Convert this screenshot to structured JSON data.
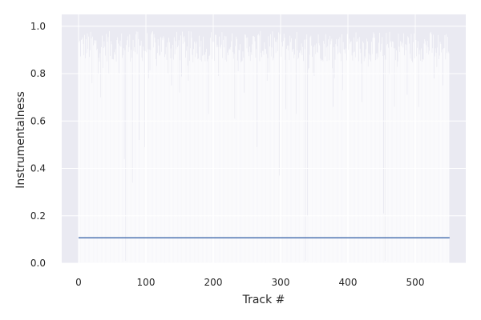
{
  "chart_data": {
    "type": "bar",
    "xlabel": "Track #",
    "ylabel": "Instrumentalness",
    "xlim": [
      -25,
      575
    ],
    "ylim": [
      0,
      1.05
    ],
    "x_ticks": [
      0,
      100,
      200,
      300,
      400,
      500
    ],
    "x_tick_labels": [
      "0",
      "100",
      "200",
      "300",
      "400",
      "500"
    ],
    "y_ticks": [
      0.0,
      0.2,
      0.4,
      0.6,
      0.8,
      1.0
    ],
    "y_tick_labels": [
      "0.0",
      "0.2",
      "0.4",
      "0.6",
      "0.8",
      "1.0"
    ],
    "grid": true,
    "background": "#eaeaf2",
    "bar_color": "#ffffff",
    "line_color": "#4c72b0",
    "bars": {
      "count": 551,
      "dominant_range": [
        0.85,
        0.98
      ],
      "dips": [
        {
          "x": 20,
          "y": 0.76
        },
        {
          "x": 33,
          "y": 0.7
        },
        {
          "x": 45,
          "y": 0.8
        },
        {
          "x": 52,
          "y": 0.86
        },
        {
          "x": 68,
          "y": 0.44
        },
        {
          "x": 70,
          "y": 0.01
        },
        {
          "x": 80,
          "y": 0.34
        },
        {
          "x": 90,
          "y": 0.52
        },
        {
          "x": 98,
          "y": 0.49
        },
        {
          "x": 104,
          "y": 0.78
        },
        {
          "x": 138,
          "y": 0.75
        },
        {
          "x": 150,
          "y": 0.72
        },
        {
          "x": 163,
          "y": 0.77
        },
        {
          "x": 193,
          "y": 0.63
        },
        {
          "x": 208,
          "y": 0.79
        },
        {
          "x": 232,
          "y": 0.61
        },
        {
          "x": 246,
          "y": 0.72
        },
        {
          "x": 265,
          "y": 0.49
        },
        {
          "x": 280,
          "y": 0.77
        },
        {
          "x": 298,
          "y": 0.37
        },
        {
          "x": 308,
          "y": 0.65
        },
        {
          "x": 323,
          "y": 0.63
        },
        {
          "x": 337,
          "y": 0.01
        },
        {
          "x": 340,
          "y": 0.2
        },
        {
          "x": 350,
          "y": 0.79
        },
        {
          "x": 378,
          "y": 0.66
        },
        {
          "x": 392,
          "y": 0.73
        },
        {
          "x": 421,
          "y": 0.68
        },
        {
          "x": 430,
          "y": 0.83
        },
        {
          "x": 453,
          "y": 0.21
        },
        {
          "x": 455,
          "y": 0.01
        },
        {
          "x": 469,
          "y": 0.66
        },
        {
          "x": 488,
          "y": 0.71
        },
        {
          "x": 505,
          "y": 0.66
        },
        {
          "x": 528,
          "y": 0.78
        },
        {
          "x": 541,
          "y": 0.75
        }
      ]
    },
    "hline": {
      "y": 0.107,
      "x_range": [
        0,
        551
      ]
    }
  }
}
